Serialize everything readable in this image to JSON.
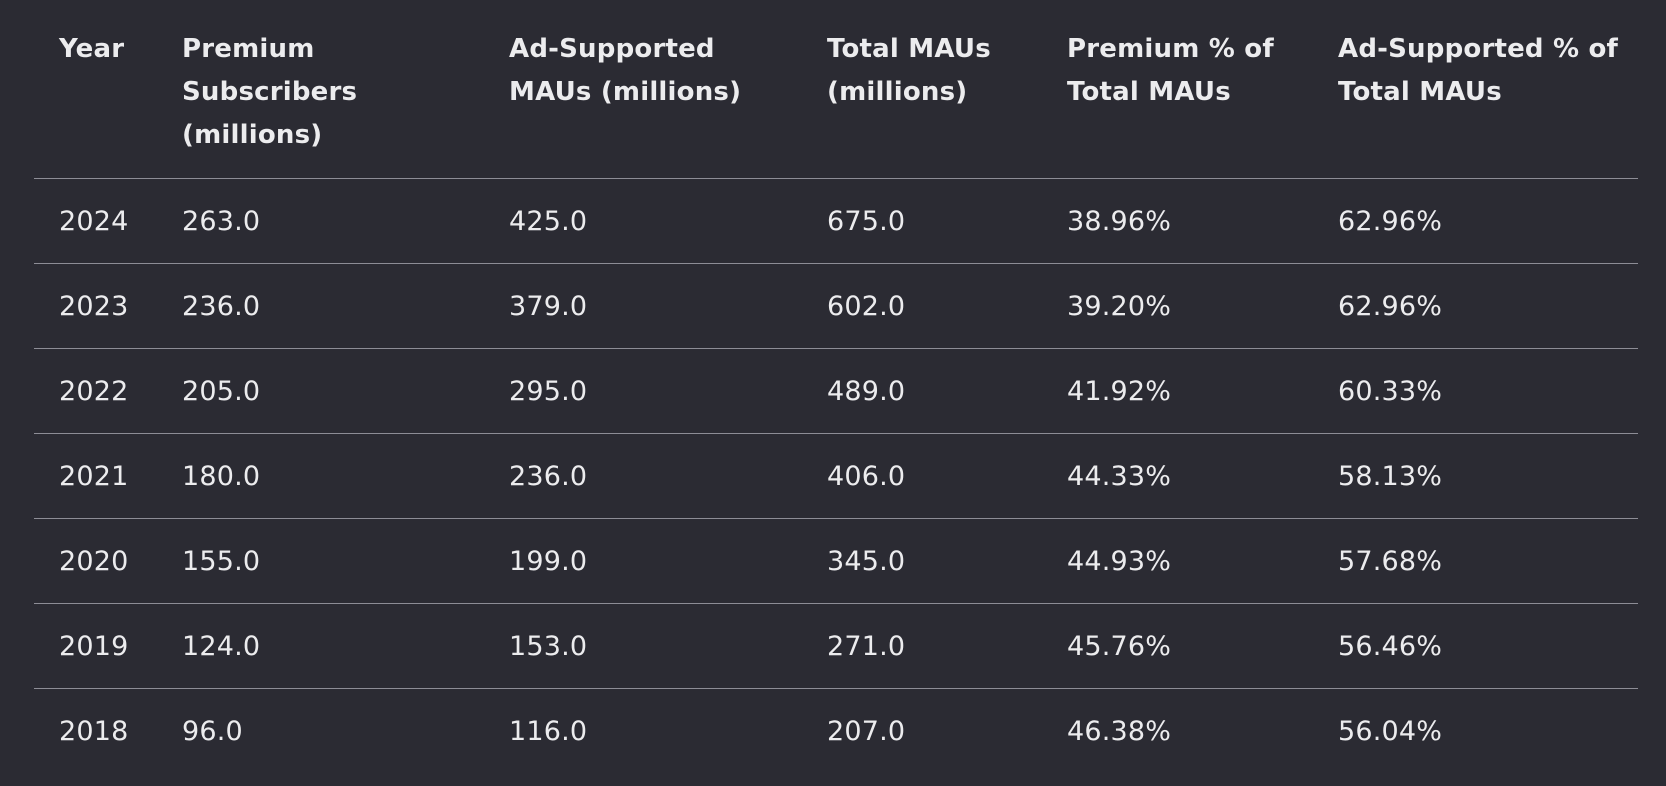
{
  "table": {
    "headers": [
      "Year",
      "Premium Subscribers (millions)",
      "Ad-Supported MAUs (millions)",
      "Total MAUs (millions)",
      "Premium % of Total MAUs",
      "Ad-Supported % of Total MAUs"
    ],
    "rows": [
      [
        "2024",
        "263.0",
        "425.0",
        "675.0",
        "38.96%",
        "62.96%"
      ],
      [
        "2023",
        "236.0",
        "379.0",
        "602.0",
        "39.20%",
        "62.96%"
      ],
      [
        "2022",
        "205.0",
        "295.0",
        "489.0",
        "41.92%",
        "60.33%"
      ],
      [
        "2021",
        "180.0",
        "236.0",
        "406.0",
        "44.33%",
        "58.13%"
      ],
      [
        "2020",
        "155.0",
        "199.0",
        "345.0",
        "44.93%",
        "57.68%"
      ],
      [
        "2019",
        "124.0",
        "153.0",
        "271.0",
        "45.76%",
        "56.46%"
      ],
      [
        "2018",
        "96.0",
        "116.0",
        "207.0",
        "46.38%",
        "56.04%"
      ]
    ]
  },
  "colors": {
    "background": "#2b2b33",
    "text": "#ececee",
    "divider": "#8d8d96"
  }
}
